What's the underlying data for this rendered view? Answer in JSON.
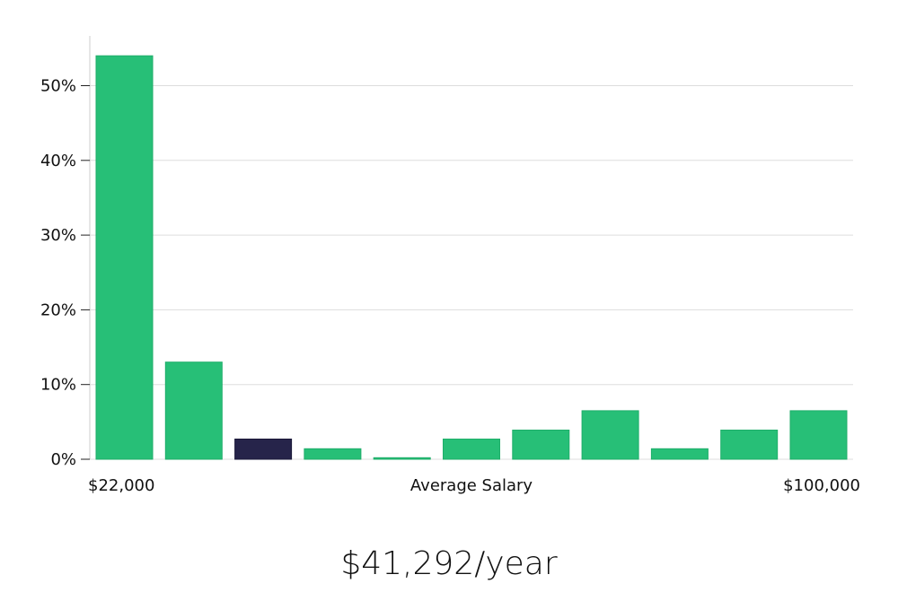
{
  "chart_data": {
    "type": "bar",
    "title": "",
    "xlabel": "Average Salary",
    "ylabel": "",
    "x_range_labels": {
      "min": "$22,000",
      "max": "$100,000"
    },
    "y_ticks": [
      "0%",
      "10%",
      "20%",
      "30%",
      "40%",
      "50%"
    ],
    "ylim": [
      0,
      56
    ],
    "grid": true,
    "values": [
      54,
      13,
      2.7,
      1.4,
      0.2,
      2.7,
      3.9,
      6.5,
      1.4,
      3.9,
      6.5
    ],
    "highlight_index": 2,
    "colors": {
      "bar": "#27bf77",
      "highlight": "#26244a",
      "grid": "#dddddd",
      "axis": "#cccccc"
    }
  },
  "headline": "$41,292/year"
}
